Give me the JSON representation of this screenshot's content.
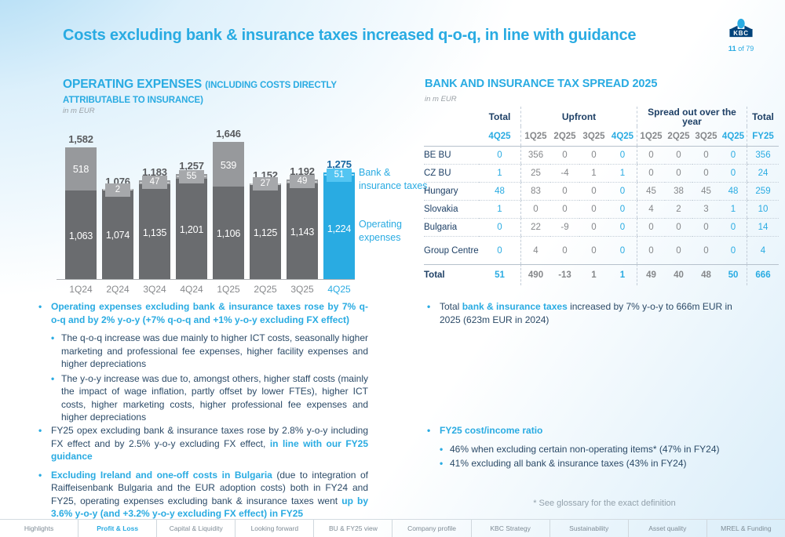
{
  "header": {
    "title": "Costs excluding bank & insurance taxes increased q-o-q, in line with guidance",
    "logo_text": "KBC",
    "page_current": "11",
    "page_suffix": " of 79"
  },
  "chart_section": {
    "title_main": "OPERATING EXPENSES ",
    "title_paren": "(INCLUDING COSTS DIRECTLY",
    "title_line2": "ATTRIBUTABLE TO INSURANCE)",
    "unit": "in m EUR",
    "legend_top": "Bank &\ninsurance taxes",
    "legend_bottom": "Operating\nexpenses"
  },
  "chart_data": {
    "type": "bar",
    "stacked": true,
    "categories": [
      "1Q24",
      "2Q24",
      "3Q24",
      "4Q24",
      "1Q25",
      "2Q25",
      "3Q25",
      "4Q25"
    ],
    "series": [
      {
        "name": "Operating expenses",
        "values": [
          1063,
          1074,
          1135,
          1201,
          1106,
          1125,
          1143,
          1224
        ]
      },
      {
        "name": "Bank & insurance taxes",
        "values": [
          518,
          2,
          47,
          55,
          539,
          27,
          49,
          51
        ]
      }
    ],
    "totals": [
      1582,
      1076,
      1183,
      1257,
      1646,
      1152,
      1192,
      1275
    ],
    "total_labels": [
      "1,582",
      "1,076",
      "1,183",
      "1,257",
      "1,646",
      "1,152",
      "1,192",
      "1,275"
    ],
    "top_labels": [
      "518",
      "2",
      "47",
      "55",
      "539",
      "27",
      "49",
      "51"
    ],
    "bottom_labels": [
      "1,063",
      "1,074",
      "1,135",
      "1,201",
      "1,106",
      "1,125",
      "1,143",
      "1,224"
    ],
    "highlight_index": 7,
    "ylim": [
      0,
      1646
    ],
    "colors": {
      "bottom_segment": "#6a6c6f",
      "top_segment": "#97999c",
      "highlight": "#29abe2",
      "badge_gray": "#a6a8ab",
      "badge_blue": "#53c5f2",
      "dash_gray": "#c6c8ca",
      "dash_blue": "#a8e2f8",
      "total_label": "#595b5e",
      "total_label_highlight": "#1565a0"
    }
  },
  "table_section": {
    "title": "BANK AND INSURANCE TAX SPREAD 2025",
    "unit": "in m EUR",
    "groups": [
      {
        "label": "Total",
        "span": 1
      },
      {
        "label": "Upfront",
        "span": 4
      },
      {
        "label": "Spread out over the year",
        "span": 4
      },
      {
        "label": "Total",
        "span": 1
      }
    ],
    "sub_headers": [
      "4Q25",
      "1Q25",
      "2Q25",
      "3Q25",
      "4Q25",
      "1Q25",
      "2Q25",
      "3Q25",
      "4Q25",
      "FY25"
    ],
    "accent_value_cols": [
      0,
      4,
      8,
      9
    ],
    "vline_after_cols": [
      0,
      4,
      8
    ],
    "rows": [
      {
        "label": "BE BU",
        "values": [
          "0",
          "356",
          "0",
          "0",
          "0",
          "0",
          "0",
          "0",
          "0",
          "356"
        ]
      },
      {
        "label": "CZ BU",
        "values": [
          "1",
          "25",
          "-4",
          "1",
          "1",
          "0",
          "0",
          "0",
          "0",
          "24"
        ]
      },
      {
        "label": "Hungary",
        "values": [
          "48",
          "83",
          "0",
          "0",
          "0",
          "45",
          "38",
          "45",
          "48",
          "259"
        ]
      },
      {
        "label": "Slovakia",
        "values": [
          "1",
          "0",
          "0",
          "0",
          "0",
          "4",
          "2",
          "3",
          "1",
          "10"
        ]
      },
      {
        "label": "Bulgaria",
        "values": [
          "0",
          "22",
          "-9",
          "0",
          "0",
          "0",
          "0",
          "0",
          "0",
          "14"
        ]
      },
      {
        "label": "Group Centre",
        "values": [
          "0",
          "4",
          "0",
          "0",
          "0",
          "0",
          "0",
          "0",
          "0",
          "4"
        ]
      }
    ],
    "total_row": {
      "label": "Total",
      "values": [
        "51",
        "490",
        "-13",
        "1",
        "1",
        "49",
        "40",
        "48",
        "50",
        "666"
      ]
    }
  },
  "bullets_left_top": [
    {
      "level": 1,
      "justify": true,
      "segments": [
        {
          "t": "Operating expenses excluding bank & insurance taxes rose by 7% q-o-q and by 2% y-o-y (+7% q-o-q and +1% y-o-y excluding FX effect)",
          "s": "accent"
        }
      ]
    },
    {
      "level": 2,
      "justify": true,
      "segments": [
        {
          "t": "The q-o-q increase was due mainly to higher ICT costs, seasonally higher marketing and professional fee expenses, higher facility expenses and higher depreciations",
          "s": "normal"
        }
      ]
    },
    {
      "level": 2,
      "justify": true,
      "segments": [
        {
          "t": "The y-o-y increase was due to, amongst others, higher staff costs (mainly the impact of wage inflation, partly offset by lower FTEs), higher ICT costs, higher marketing costs, higher professional fee expenses and higher depreciations",
          "s": "normal"
        }
      ]
    }
  ],
  "bullets_left_bottom": [
    {
      "level": 1,
      "justify": true,
      "segments": [
        {
          "t": "FY25 opex excluding bank & insurance taxes rose by 2.8% y-o-y including FX effect and by 2.5% y-o-y excluding FX effect,",
          "s": "normal"
        },
        {
          "t": " in line with our FY25 guidance",
          "s": "accent"
        }
      ]
    },
    {
      "level": 1,
      "justify": true,
      "segments": [
        {
          "t": "Excluding Ireland and one-off costs in Bulgaria",
          "s": "accent"
        },
        {
          "t": " (due to integration of Raiffeisenbank Bulgaria and the EUR adoption costs) both in FY24 and FY25, operating expenses excluding bank & insurance taxes went ",
          "s": "normal"
        },
        {
          "t": "up by 3.6% y-o-y (and +3.2% y-o-y excluding FX effect) in FY25",
          "s": "accent"
        }
      ]
    }
  ],
  "bullets_right_top": [
    {
      "level": 1,
      "justify": false,
      "segments": [
        {
          "t": "Total ",
          "s": "normal"
        },
        {
          "t": "bank & insurance taxes",
          "s": "accent"
        },
        {
          "t": " increased by 7% y-o-y to 666m EUR in 2025 (623m EUR in 2024)",
          "s": "normal"
        }
      ]
    }
  ],
  "bullets_right_bottom": [
    {
      "level": 1,
      "justify": false,
      "segments": [
        {
          "t": "FY25 cost/income ratio",
          "s": "accent"
        }
      ]
    },
    {
      "level": 2,
      "justify": false,
      "segments": [
        {
          "t": "46% when excluding certain non-operating items* (47% in FY24)",
          "s": "normal"
        }
      ]
    },
    {
      "level": 2,
      "justify": false,
      "segments": [
        {
          "t": "41% excluding all bank & insurance taxes (43% in FY24)",
          "s": "normal"
        }
      ]
    }
  ],
  "footnote": "* See glossary for the exact definition",
  "footer": {
    "tabs": [
      "Highlights",
      "Profit & Loss",
      "Capital & Liquidity",
      "Looking forward",
      "BU & FY25 view",
      "Company profile",
      "KBC Strategy",
      "Sustainability",
      "Asset quality",
      "MREL & Funding"
    ],
    "active_index": 1
  }
}
